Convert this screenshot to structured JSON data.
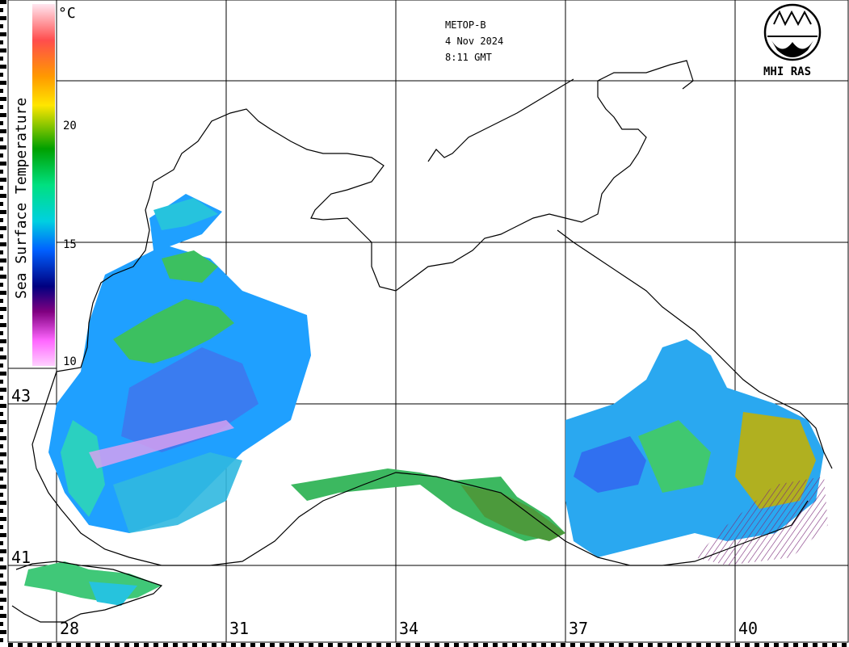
{
  "header": {
    "satellite": "METOP-B",
    "date": "4 Nov 2024",
    "time": "8:11 GMT"
  },
  "logo": {
    "text": "MHI RAS"
  },
  "colorbar": {
    "title": "Sea Surface Temperature",
    "unit": "°C",
    "ticks": [
      "20",
      "15",
      "10"
    ],
    "colors": [
      "#ffe6f0",
      "#ff4d4d",
      "#ff9900",
      "#ffe600",
      "#00a000",
      "#00e080",
      "#00d0e0",
      "#0060ff",
      "#000080",
      "#800080",
      "#ff66ff",
      "#ffd0ff"
    ]
  },
  "grid": {
    "lon_labels": [
      "28",
      "31",
      "34",
      "37",
      "40"
    ],
    "lat_labels": [
      "43",
      "41"
    ]
  }
}
